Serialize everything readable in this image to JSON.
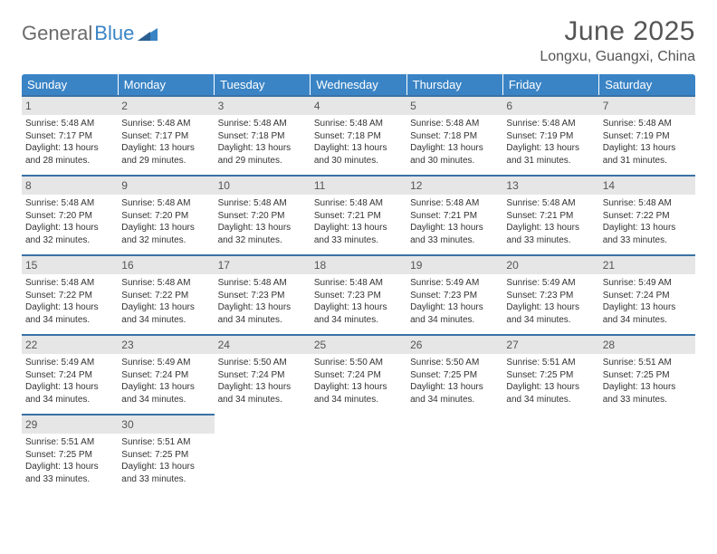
{
  "logo": {
    "text1": "General",
    "text2": "Blue"
  },
  "header": {
    "month_title": "June 2025",
    "location": "Longxu, Guangxi, China"
  },
  "colors": {
    "header_bg": "#3a84c5",
    "header_text": "#ffffff",
    "row_divider": "#3a72a6",
    "daynum_bg": "#e6e6e6",
    "body_text": "#333333",
    "logo_gray": "#6b6b6b",
    "logo_blue": "#3a84c5"
  },
  "dow": [
    "Sunday",
    "Monday",
    "Tuesday",
    "Wednesday",
    "Thursday",
    "Friday",
    "Saturday"
  ],
  "weeks": [
    [
      {
        "n": "1",
        "sr": "5:48 AM",
        "ss": "7:17 PM",
        "dl": "13 hours and 28 minutes."
      },
      {
        "n": "2",
        "sr": "5:48 AM",
        "ss": "7:17 PM",
        "dl": "13 hours and 29 minutes."
      },
      {
        "n": "3",
        "sr": "5:48 AM",
        "ss": "7:18 PM",
        "dl": "13 hours and 29 minutes."
      },
      {
        "n": "4",
        "sr": "5:48 AM",
        "ss": "7:18 PM",
        "dl": "13 hours and 30 minutes."
      },
      {
        "n": "5",
        "sr": "5:48 AM",
        "ss": "7:18 PM",
        "dl": "13 hours and 30 minutes."
      },
      {
        "n": "6",
        "sr": "5:48 AM",
        "ss": "7:19 PM",
        "dl": "13 hours and 31 minutes."
      },
      {
        "n": "7",
        "sr": "5:48 AM",
        "ss": "7:19 PM",
        "dl": "13 hours and 31 minutes."
      }
    ],
    [
      {
        "n": "8",
        "sr": "5:48 AM",
        "ss": "7:20 PM",
        "dl": "13 hours and 32 minutes."
      },
      {
        "n": "9",
        "sr": "5:48 AM",
        "ss": "7:20 PM",
        "dl": "13 hours and 32 minutes."
      },
      {
        "n": "10",
        "sr": "5:48 AM",
        "ss": "7:20 PM",
        "dl": "13 hours and 32 minutes."
      },
      {
        "n": "11",
        "sr": "5:48 AM",
        "ss": "7:21 PM",
        "dl": "13 hours and 33 minutes."
      },
      {
        "n": "12",
        "sr": "5:48 AM",
        "ss": "7:21 PM",
        "dl": "13 hours and 33 minutes."
      },
      {
        "n": "13",
        "sr": "5:48 AM",
        "ss": "7:21 PM",
        "dl": "13 hours and 33 minutes."
      },
      {
        "n": "14",
        "sr": "5:48 AM",
        "ss": "7:22 PM",
        "dl": "13 hours and 33 minutes."
      }
    ],
    [
      {
        "n": "15",
        "sr": "5:48 AM",
        "ss": "7:22 PM",
        "dl": "13 hours and 34 minutes."
      },
      {
        "n": "16",
        "sr": "5:48 AM",
        "ss": "7:22 PM",
        "dl": "13 hours and 34 minutes."
      },
      {
        "n": "17",
        "sr": "5:48 AM",
        "ss": "7:23 PM",
        "dl": "13 hours and 34 minutes."
      },
      {
        "n": "18",
        "sr": "5:48 AM",
        "ss": "7:23 PM",
        "dl": "13 hours and 34 minutes."
      },
      {
        "n": "19",
        "sr": "5:49 AM",
        "ss": "7:23 PM",
        "dl": "13 hours and 34 minutes."
      },
      {
        "n": "20",
        "sr": "5:49 AM",
        "ss": "7:23 PM",
        "dl": "13 hours and 34 minutes."
      },
      {
        "n": "21",
        "sr": "5:49 AM",
        "ss": "7:24 PM",
        "dl": "13 hours and 34 minutes."
      }
    ],
    [
      {
        "n": "22",
        "sr": "5:49 AM",
        "ss": "7:24 PM",
        "dl": "13 hours and 34 minutes."
      },
      {
        "n": "23",
        "sr": "5:49 AM",
        "ss": "7:24 PM",
        "dl": "13 hours and 34 minutes."
      },
      {
        "n": "24",
        "sr": "5:50 AM",
        "ss": "7:24 PM",
        "dl": "13 hours and 34 minutes."
      },
      {
        "n": "25",
        "sr": "5:50 AM",
        "ss": "7:24 PM",
        "dl": "13 hours and 34 minutes."
      },
      {
        "n": "26",
        "sr": "5:50 AM",
        "ss": "7:25 PM",
        "dl": "13 hours and 34 minutes."
      },
      {
        "n": "27",
        "sr": "5:51 AM",
        "ss": "7:25 PM",
        "dl": "13 hours and 34 minutes."
      },
      {
        "n": "28",
        "sr": "5:51 AM",
        "ss": "7:25 PM",
        "dl": "13 hours and 33 minutes."
      }
    ],
    [
      {
        "n": "29",
        "sr": "5:51 AM",
        "ss": "7:25 PM",
        "dl": "13 hours and 33 minutes."
      },
      {
        "n": "30",
        "sr": "5:51 AM",
        "ss": "7:25 PM",
        "dl": "13 hours and 33 minutes."
      },
      null,
      null,
      null,
      null,
      null
    ]
  ],
  "labels": {
    "sunrise": "Sunrise:",
    "sunset": "Sunset:",
    "daylight": "Daylight:"
  }
}
